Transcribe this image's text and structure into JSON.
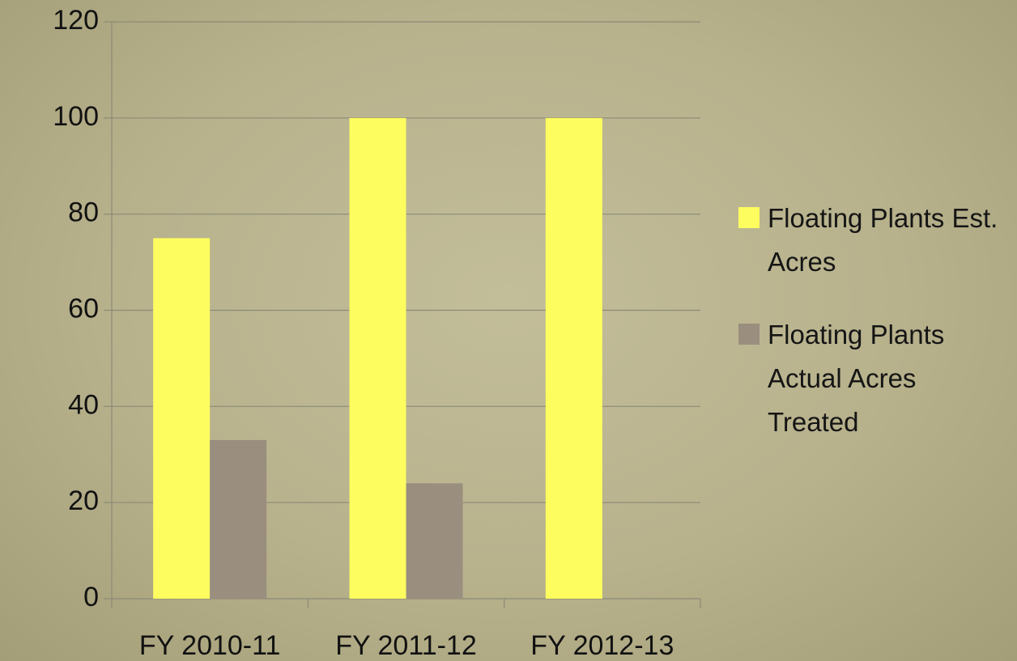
{
  "chart_data": {
    "type": "bar",
    "categories": [
      "FY 2010-11",
      "FY 2011-12",
      "FY 2012-13"
    ],
    "series": [
      {
        "name": "Floating Plants Est. Acres",
        "color": "#fdfd5f",
        "values": [
          75,
          100,
          100
        ]
      },
      {
        "name": "Floating Plants Actual Acres Treated",
        "color": "#9a8e7f",
        "values": [
          33,
          24,
          0
        ]
      }
    ],
    "ylim": [
      0,
      120
    ],
    "yticks": [
      0,
      20,
      40,
      60,
      80,
      100,
      120
    ],
    "grid": true,
    "legend": "right"
  }
}
